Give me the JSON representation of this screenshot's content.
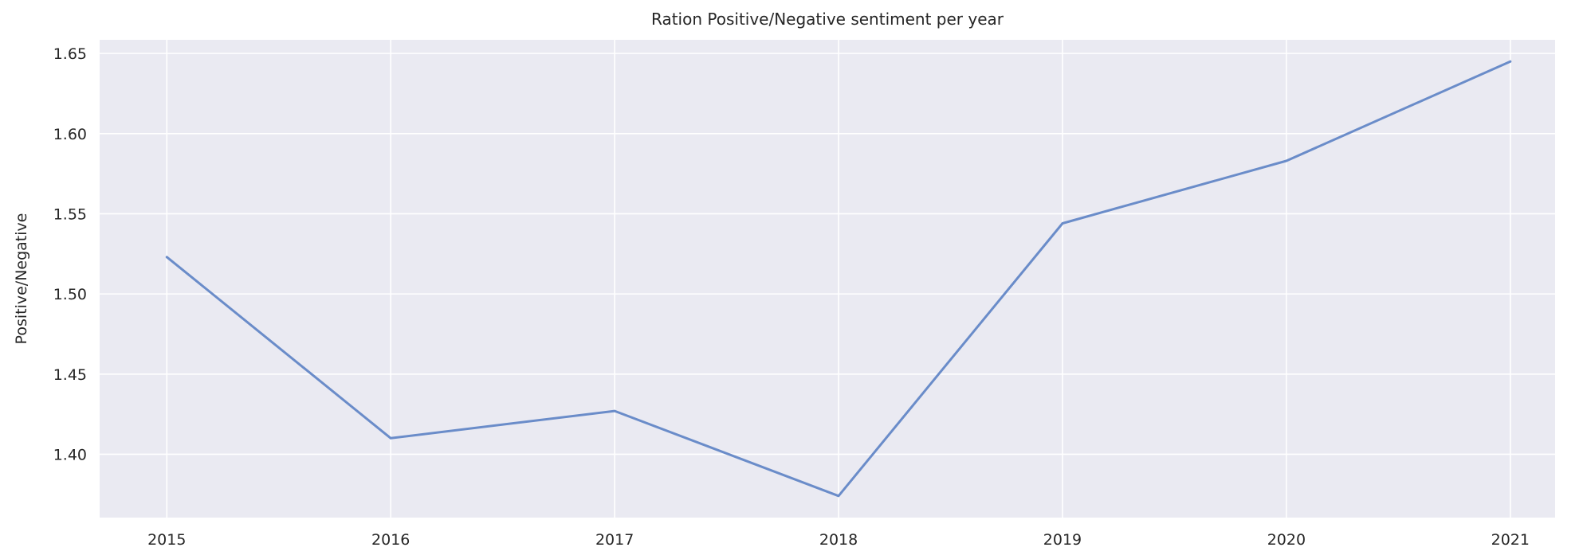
{
  "chart_data": {
    "type": "line",
    "title": "Ration Positive/Negative sentiment per year",
    "xlabel": "",
    "ylabel": "Positive/Negative",
    "x": [
      2015,
      2016,
      2017,
      2018,
      2019,
      2020,
      2021
    ],
    "x_tick_labels": [
      "2015",
      "2016",
      "2017",
      "2018",
      "2019",
      "2020",
      "2021"
    ],
    "series": [
      {
        "values": [
          1.523,
          1.41,
          1.427,
          1.374,
          1.544,
          1.583,
          1.645
        ],
        "color": "#6a8cc9"
      }
    ],
    "y_ticks": [
      1.4,
      1.45,
      1.5,
      1.55,
      1.6,
      1.65
    ],
    "y_tick_labels": [
      "1.40",
      "1.45",
      "1.50",
      "1.55",
      "1.60",
      "1.65"
    ],
    "xlim": [
      2014.7,
      2021.2
    ],
    "ylim": [
      1.3605,
      1.6585
    ],
    "grid": true,
    "background_color": "#eaeaf2",
    "grid_color": "#ffffff"
  }
}
